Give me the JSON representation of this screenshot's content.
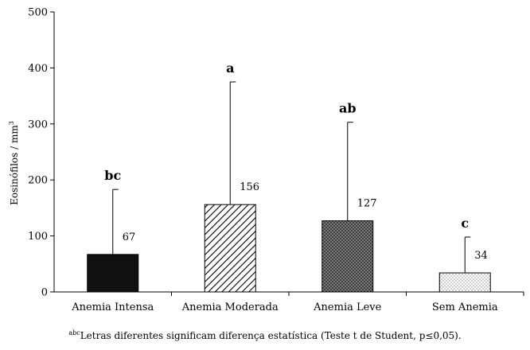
{
  "chart_data": {
    "type": "bar",
    "categories": [
      "Anemia Intensa",
      "Anemia Moderada",
      "Anemia Leve",
      "Sem Anemia"
    ],
    "values": [
      67,
      156,
      127,
      34
    ],
    "error_upper": [
      183,
      375,
      303,
      98
    ],
    "significance": [
      "bc",
      "a",
      "ab",
      "c"
    ],
    "value_labels": [
      "67",
      "156",
      "127",
      "34"
    ],
    "ylabel": "Eosinófilos / mm",
    "ylabel_superscript": "3",
    "ylim": [
      0,
      500
    ],
    "yticks": [
      "0",
      "100",
      "200",
      "300",
      "400",
      "500"
    ],
    "grid": false,
    "bar_fills": [
      "black-fill",
      "diagonal-stripes",
      "crosshatch",
      "dots"
    ]
  },
  "footnote": {
    "superscript": "abc",
    "text": "Letras diferentes significam diferença estatística (Teste t de Student, p≤0,05)."
  }
}
